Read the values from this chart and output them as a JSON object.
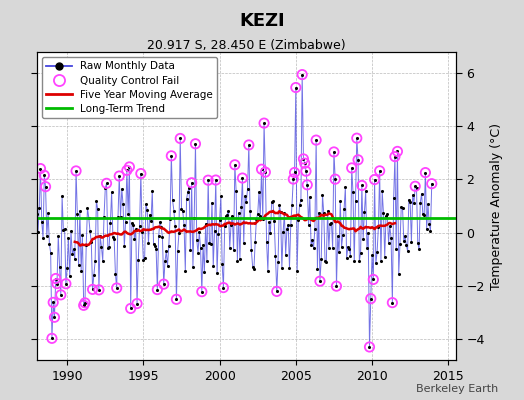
{
  "title": "KEZI",
  "subtitle": "20.917 S, 28.450 E (Zimbabwe)",
  "ylabel": "Temperature Anomaly (°C)",
  "watermark": "Berkeley Earth",
  "xlim": [
    1988.0,
    2015.5
  ],
  "ylim": [
    -4.8,
    6.8
  ],
  "yticks": [
    -4,
    -2,
    0,
    2,
    4,
    6
  ],
  "xticks": [
    1990,
    1995,
    2000,
    2005,
    2010,
    2015
  ],
  "long_term_trend_value": 0.55,
  "background_color": "#d8d8d8",
  "plot_bg_color": "#ffffff",
  "line_color_raw": "#4444dd",
  "dot_color_raw": "#000000",
  "qc_fail_color": "#ff44ff",
  "moving_avg_color": "#dd0000",
  "trend_color": "#00bb00",
  "seed": 42
}
